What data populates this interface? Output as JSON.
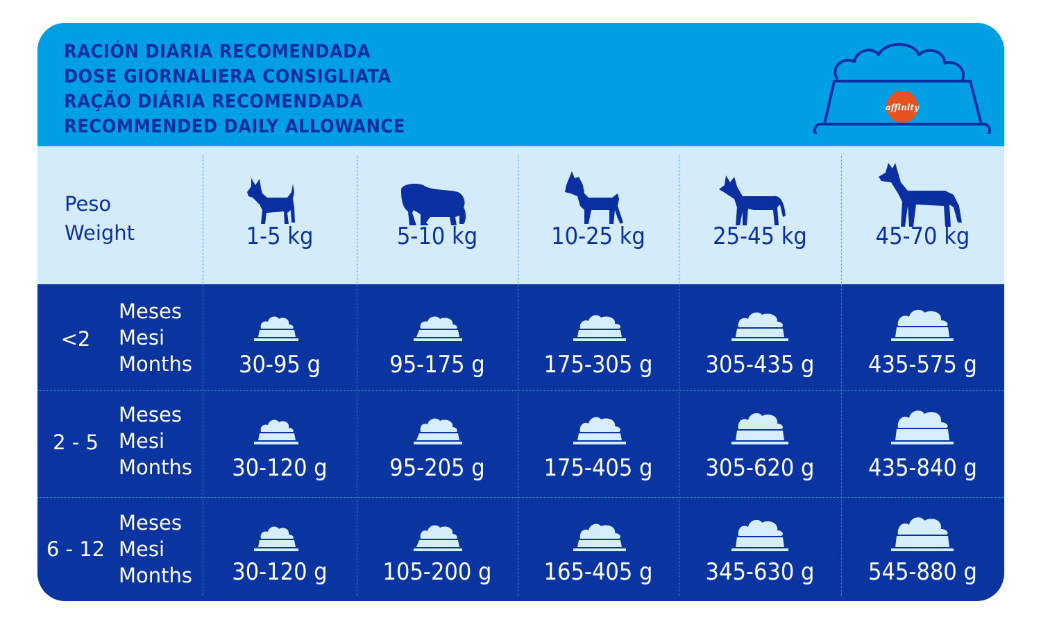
{
  "header": {
    "title_lines": [
      "RACIÓN DIARIA RECOMENDADA",
      "DOSE GIORNALIERA CONSIGLIATA",
      "RAÇÃO DIÁRIA RECOMENDADA",
      "RECOMMENDED DAILY ALLOWANCE"
    ],
    "logo_text": "affinity"
  },
  "weight_header": {
    "label_lines": [
      "Peso",
      "Weight"
    ],
    "columns": [
      "1-5 kg",
      "5-10 kg",
      "10-25 kg",
      "25-45 kg",
      "45-70 kg"
    ]
  },
  "rows": [
    {
      "age": "<2",
      "unit_lines": [
        "Meses",
        "Mesi",
        "Months"
      ],
      "amounts": [
        "30-95 g",
        "95-175 g",
        "175-305 g",
        "305-435 g",
        "435-575 g"
      ]
    },
    {
      "age": "2 - 5",
      "unit_lines": [
        "Meses",
        "Mesi",
        "Months"
      ],
      "amounts": [
        "30-120 g",
        "95-205 g",
        "175-405 g",
        "305-620 g",
        "435-840 g"
      ]
    },
    {
      "age": "6 - 12",
      "unit_lines": [
        "Meses",
        "Mesi",
        "Months"
      ],
      "amounts": [
        "30-120 g",
        "105-200 g",
        "165-405 g",
        "345-630 g",
        "545-880 g"
      ]
    }
  ],
  "colors": {
    "title_band": "#009fe3",
    "title_text": "#0a2fa0",
    "weight_band": "#d4ecfa",
    "table_body": "#0a35a0",
    "bowl_icon": "#d6eefb",
    "logo_badge": "#e6521f"
  },
  "icons": {
    "dogs": [
      "small-dog-icon",
      "bulldog-icon",
      "boxer-dog-icon",
      "husky-dog-icon",
      "large-dog-icon"
    ],
    "food": "food-bowl-icon"
  }
}
